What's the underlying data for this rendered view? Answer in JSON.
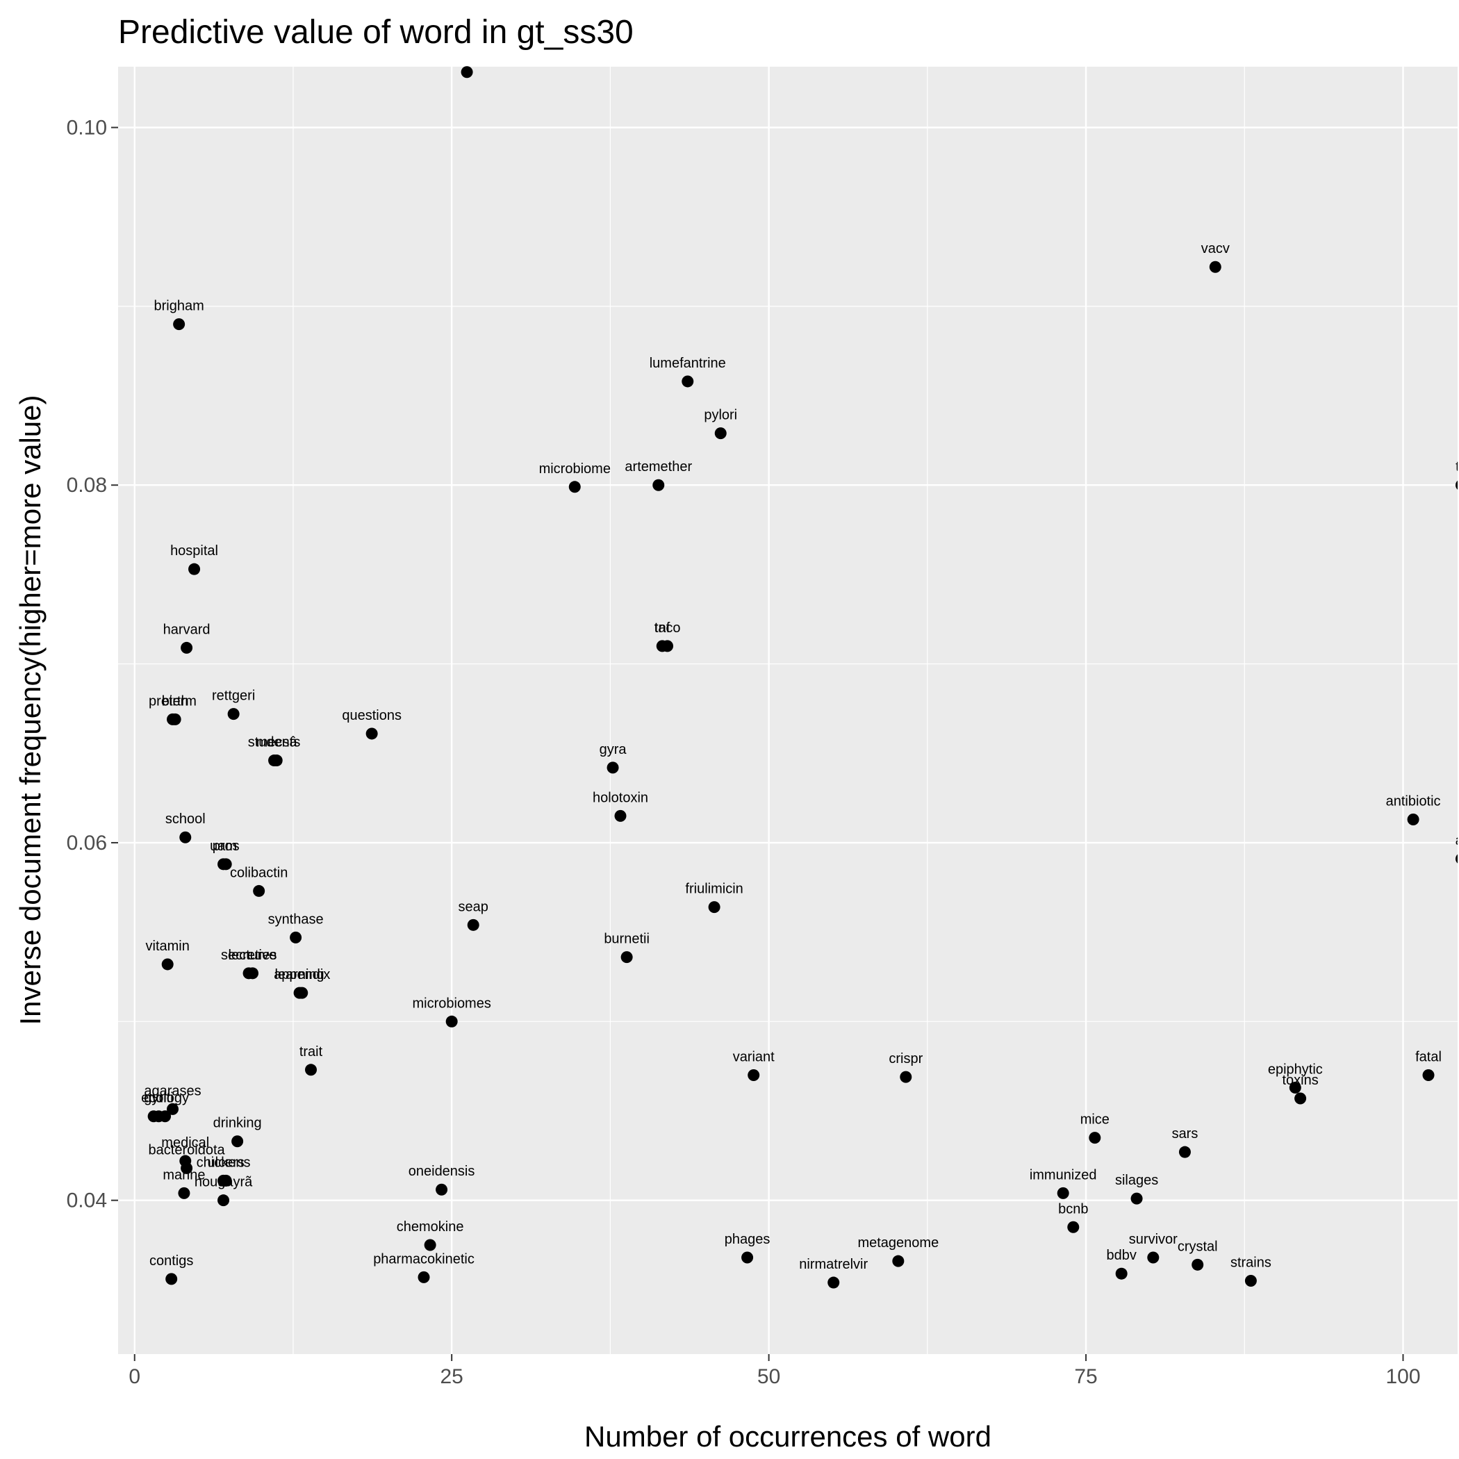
{
  "chart_data": {
    "type": "scatter",
    "title": "Predictive value of word in gt_ss30",
    "xlabel": "Number of occurrences of word",
    "ylabel": "Inverse document frequency(higher=more value)",
    "xlim": [
      -1.3,
      104.3
    ],
    "ylim": [
      0.0314,
      0.1034
    ],
    "x_ticks": [
      0,
      25,
      50,
      75,
      100
    ],
    "x_tick_labels": [
      "0",
      "25",
      "50",
      "75",
      "100"
    ],
    "y_ticks": [
      0.04,
      0.06,
      0.08,
      0.1
    ],
    "y_tick_labels": [
      "0.04",
      "0.06",
      "0.08",
      "0.10"
    ],
    "grid": true,
    "colors": {
      "panel": "#ebebeb",
      "grid": "#ffffff",
      "point": "#000000"
    },
    "points": [
      {
        "label": "",
        "x": 26.2,
        "y": 0.1031
      },
      {
        "label": "vacv",
        "x": 85.2,
        "y": 0.0922
      },
      {
        "label": "brigham",
        "x": 3.5,
        "y": 0.089
      },
      {
        "label": "lumefantrine",
        "x": 43.6,
        "y": 0.0858
      },
      {
        "label": "pylori",
        "x": 46.2,
        "y": 0.0829
      },
      {
        "label": "microbiome",
        "x": 34.7,
        "y": 0.0799
      },
      {
        "label": "artemether",
        "x": 41.3,
        "y": 0.08
      },
      {
        "label": "th",
        "x": 104.6,
        "y": 0.08
      },
      {
        "label": "hospital",
        "x": 4.7,
        "y": 0.0753
      },
      {
        "label": "harvard",
        "x": 4.1,
        "y": 0.0709
      },
      {
        "label": "tnf",
        "x": 41.6,
        "y": 0.071
      },
      {
        "label": "taco",
        "x": 42.0,
        "y": 0.071
      },
      {
        "label": "preterm",
        "x": 3.0,
        "y": 0.0669
      },
      {
        "label": "birth",
        "x": 3.2,
        "y": 0.0669
      },
      {
        "label": "rettgeri",
        "x": 7.8,
        "y": 0.0672
      },
      {
        "label": "questions",
        "x": 18.7,
        "y": 0.0661
      },
      {
        "label": "students",
        "x": 11.0,
        "y": 0.0646
      },
      {
        "label": "mecsâ",
        "x": 11.2,
        "y": 0.0646
      },
      {
        "label": "gyra",
        "x": 37.7,
        "y": 0.0642
      },
      {
        "label": "holotoxin",
        "x": 38.3,
        "y": 0.0615
      },
      {
        "label": "antibiotic",
        "x": 100.8,
        "y": 0.0613
      },
      {
        "label": "school",
        "x": 4.0,
        "y": 0.0603
      },
      {
        "label": "uam",
        "x": 7.0,
        "y": 0.0588
      },
      {
        "label": "pros",
        "x": 7.2,
        "y": 0.0588
      },
      {
        "label": "ar",
        "x": 104.6,
        "y": 0.0591
      },
      {
        "label": "colibactin",
        "x": 9.8,
        "y": 0.0573
      },
      {
        "label": "friulimicin",
        "x": 45.7,
        "y": 0.0564
      },
      {
        "label": "seap",
        "x": 26.7,
        "y": 0.0554
      },
      {
        "label": "synthase",
        "x": 12.7,
        "y": 0.0547
      },
      {
        "label": "burnetii",
        "x": 38.8,
        "y": 0.0536
      },
      {
        "label": "vitamin",
        "x": 2.6,
        "y": 0.0532
      },
      {
        "label": "secretive",
        "x": 9.0,
        "y": 0.0527
      },
      {
        "label": "lectures",
        "x": 9.3,
        "y": 0.0527
      },
      {
        "label": "learning",
        "x": 13.0,
        "y": 0.0516
      },
      {
        "label": "appendix",
        "x": 13.2,
        "y": 0.0516
      },
      {
        "label": "microbiomes",
        "x": 25.0,
        "y": 0.05
      },
      {
        "label": "trait",
        "x": 13.9,
        "y": 0.0473
      },
      {
        "label": "variant",
        "x": 48.8,
        "y": 0.047
      },
      {
        "label": "crispr",
        "x": 60.8,
        "y": 0.0469
      },
      {
        "label": "fatal",
        "x": 102.0,
        "y": 0.047
      },
      {
        "label": "epiphytic",
        "x": 91.5,
        "y": 0.0463
      },
      {
        "label": "toxins",
        "x": 91.9,
        "y": 0.0457
      },
      {
        "label": "agarases",
        "x": 3.0,
        "y": 0.0451
      },
      {
        "label": "gyr",
        "x": 1.5,
        "y": 0.0447
      },
      {
        "label": "multi",
        "x": 1.9,
        "y": 0.0447
      },
      {
        "label": "ecology",
        "x": 2.4,
        "y": 0.0447
      },
      {
        "label": "mice",
        "x": 75.7,
        "y": 0.0435
      },
      {
        "label": "drinking",
        "x": 8.1,
        "y": 0.0433
      },
      {
        "label": "sars",
        "x": 82.8,
        "y": 0.0427
      },
      {
        "label": "medical",
        "x": 4.0,
        "y": 0.0422
      },
      {
        "label": "bacteroidota",
        "x": 4.1,
        "y": 0.0418
      },
      {
        "label": "chickens",
        "x": 7.0,
        "y": 0.0411
      },
      {
        "label": "ulcers",
        "x": 7.2,
        "y": 0.0411
      },
      {
        "label": "marine",
        "x": 3.9,
        "y": 0.0404
      },
      {
        "label": "hougayrã",
        "x": 7.0,
        "y": 0.04
      },
      {
        "label": "oneidensis",
        "x": 24.2,
        "y": 0.0406
      },
      {
        "label": "immunized",
        "x": 73.2,
        "y": 0.0404
      },
      {
        "label": "silages",
        "x": 79.0,
        "y": 0.0401
      },
      {
        "label": "bcnb",
        "x": 74.0,
        "y": 0.0385
      },
      {
        "label": "chemokine",
        "x": 23.3,
        "y": 0.0375
      },
      {
        "label": "phages",
        "x": 48.3,
        "y": 0.0368
      },
      {
        "label": "metagenome",
        "x": 60.2,
        "y": 0.0366
      },
      {
        "label": "survivor",
        "x": 80.3,
        "y": 0.0368
      },
      {
        "label": "crystal",
        "x": 83.8,
        "y": 0.0364
      },
      {
        "label": "bdbv",
        "x": 77.8,
        "y": 0.0359
      },
      {
        "label": "contigs",
        "x": 2.9,
        "y": 0.0356
      },
      {
        "label": "pharmacokinetic",
        "x": 22.8,
        "y": 0.0357
      },
      {
        "label": "nirmatrelvir",
        "x": 55.1,
        "y": 0.0354
      },
      {
        "label": "strains",
        "x": 88.0,
        "y": 0.0355
      }
    ]
  }
}
